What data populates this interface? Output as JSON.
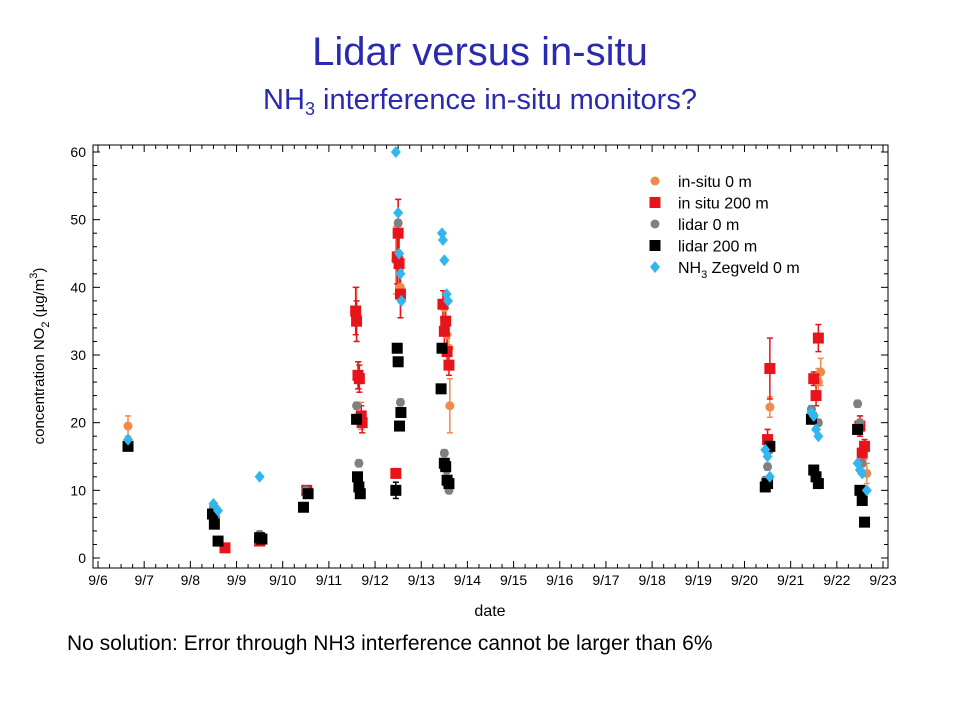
{
  "title": "Lidar versus in-situ",
  "subtitle_pre": "NH",
  "subtitle_sub": "3",
  "subtitle_post": " interference in-situ monitors?",
  "note": "No solution: Error through NH3 interference cannot be larger than 6%",
  "chart_data": {
    "type": "scatter",
    "xlabel": "date",
    "ylabel_pre": "concentration NO",
    "ylabel_sub": "2",
    "ylabel_unit": " (µg/m",
    "ylabel_sup": "3",
    "ylabel_close": ")",
    "x_ticks": [
      "9/6",
      "9/7",
      "9/8",
      "9/9",
      "9/10",
      "9/11",
      "9/12",
      "9/13",
      "9/14",
      "9/15",
      "9/16",
      "9/17",
      "9/18",
      "9/19",
      "9/20",
      "9/21",
      "9/22",
      "9/23"
    ],
    "y_ticks": [
      "0",
      "10",
      "20",
      "30",
      "40",
      "50",
      "60"
    ],
    "xlim": [
      0,
      17
    ],
    "ylim": [
      -1,
      61
    ],
    "legend_position": "top-right",
    "series": [
      {
        "name": "in-situ 0 m",
        "marker": "circle",
        "color": "#f08a4b",
        "points": [
          [
            0.65,
            19.5
          ],
          [
            3.5,
            2.5
          ],
          [
            4.5,
            10
          ],
          [
            5.6,
            36
          ],
          [
            5.65,
            27
          ],
          [
            5.7,
            21
          ],
          [
            6.45,
            44
          ],
          [
            6.5,
            48
          ],
          [
            6.55,
            40
          ],
          [
            7.5,
            37
          ],
          [
            7.55,
            33
          ],
          [
            7.6,
            31
          ],
          [
            7.62,
            22.5
          ],
          [
            14.5,
            17.5
          ],
          [
            14.55,
            22.3
          ],
          [
            15.6,
            26
          ],
          [
            15.65,
            27.5
          ],
          [
            16.5,
            19.5
          ],
          [
            16.6,
            16
          ],
          [
            16.65,
            12.5
          ]
        ],
        "errors": [
          1.5,
          0.5,
          0.5,
          4,
          2,
          2,
          5,
          5,
          4.5,
          2,
          2,
          2,
          4,
          1.5,
          1.5,
          2,
          2,
          1.5,
          1.5,
          1.5
        ]
      },
      {
        "name": "in situ 200 m",
        "marker": "square",
        "color": "#e8141b",
        "points": [
          [
            2.75,
            1.5
          ],
          [
            3.5,
            2.5
          ],
          [
            4.52,
            10
          ],
          [
            5.58,
            36.5
          ],
          [
            5.6,
            35
          ],
          [
            5.63,
            27
          ],
          [
            5.66,
            26.5
          ],
          [
            5.7,
            21
          ],
          [
            5.72,
            20
          ],
          [
            6.45,
            12.5
          ],
          [
            6.48,
            44.5
          ],
          [
            6.5,
            48
          ],
          [
            6.52,
            43.5
          ],
          [
            6.55,
            39
          ],
          [
            7.47,
            37.5
          ],
          [
            7.5,
            33.5
          ],
          [
            7.53,
            35
          ],
          [
            7.56,
            30.5
          ],
          [
            7.6,
            28.5
          ],
          [
            14.5,
            17.5
          ],
          [
            14.55,
            28
          ],
          [
            15.5,
            26.5
          ],
          [
            15.55,
            24
          ],
          [
            15.6,
            32.5
          ],
          [
            16.5,
            19.5
          ],
          [
            16.55,
            15.5
          ],
          [
            16.6,
            16.5
          ]
        ],
        "errors": [
          0.3,
          0.3,
          0.5,
          3.5,
          3,
          2,
          2,
          1.5,
          1.5,
          0.5,
          4,
          5,
          4,
          3.5,
          2,
          2,
          2,
          2,
          1.5,
          1.5,
          4.5,
          1,
          1.5,
          2,
          1.5,
          1,
          1
        ]
      },
      {
        "name": "lidar 0 m",
        "marker": "circle",
        "color": "#808080",
        "points": [
          [
            0.65,
            17
          ],
          [
            2.5,
            7.5
          ],
          [
            2.55,
            6
          ],
          [
            3.5,
            3.5
          ],
          [
            4.5,
            10
          ],
          [
            5.6,
            22.5
          ],
          [
            5.65,
            14
          ],
          [
            6.5,
            49.5
          ],
          [
            6.55,
            23
          ],
          [
            7.5,
            15.5
          ],
          [
            7.55,
            13
          ],
          [
            7.6,
            10
          ],
          [
            14.45,
            11.5
          ],
          [
            14.5,
            13.5
          ],
          [
            14.55,
            16
          ],
          [
            15.45,
            22
          ],
          [
            15.5,
            21
          ],
          [
            15.6,
            20
          ],
          [
            16.45,
            22.8
          ],
          [
            16.5,
            20
          ],
          [
            16.55,
            14
          ]
        ],
        "errors": [
          0.5,
          0.5,
          0.5,
          0.5,
          0.5,
          0.5,
          0.5,
          0.5,
          0.5,
          0.5,
          0.5,
          0.5,
          0.5,
          0.5,
          0.5,
          0.5,
          0.5,
          0.5,
          0.5,
          0.5,
          0.5
        ]
      },
      {
        "name": "lidar 200 m",
        "marker": "square",
        "color": "#000000",
        "points": [
          [
            0.65,
            16.5
          ],
          [
            2.48,
            6.5
          ],
          [
            2.52,
            5
          ],
          [
            2.6,
            2.5
          ],
          [
            3.5,
            3
          ],
          [
            3.55,
            2.8
          ],
          [
            4.45,
            7.5
          ],
          [
            4.55,
            9.5
          ],
          [
            5.6,
            20.5
          ],
          [
            5.62,
            12
          ],
          [
            5.65,
            10.5
          ],
          [
            5.68,
            9.5
          ],
          [
            6.45,
            10
          ],
          [
            6.48,
            31
          ],
          [
            6.5,
            29
          ],
          [
            6.53,
            19.5
          ],
          [
            6.56,
            21.5
          ],
          [
            7.43,
            25
          ],
          [
            7.45,
            31
          ],
          [
            7.5,
            14
          ],
          [
            7.53,
            13.5
          ],
          [
            7.56,
            11.5
          ],
          [
            7.6,
            11
          ],
          [
            14.45,
            10.5
          ],
          [
            14.5,
            11
          ],
          [
            14.55,
            16.5
          ],
          [
            15.45,
            20.5
          ],
          [
            15.5,
            13
          ],
          [
            15.55,
            12
          ],
          [
            15.6,
            11
          ],
          [
            16.45,
            19
          ],
          [
            16.5,
            10
          ],
          [
            16.55,
            8.5
          ],
          [
            16.6,
            5.3
          ]
        ],
        "errors": [
          0.4,
          0.4,
          0.4,
          0.4,
          0.4,
          0.4,
          0.4,
          0.4,
          0.4,
          0.4,
          0.4,
          0.4,
          1.2,
          0.4,
          0.4,
          0.4,
          0.4,
          0.4,
          0.4,
          0.4,
          0.4,
          0.4,
          0.4,
          0.4,
          0.4,
          0.4,
          0.4,
          0.4,
          0.4,
          0.4,
          0.4,
          0.4,
          0.4,
          0.4
        ]
      },
      {
        "name_pre": "NH",
        "name_sub": "3",
        "name_post": " Zegveld 0 m",
        "marker": "diamond",
        "color": "#33b5ee",
        "points": [
          [
            0.65,
            17.5
          ],
          [
            2.5,
            8
          ],
          [
            2.6,
            7
          ],
          [
            3.5,
            12
          ],
          [
            6.45,
            60
          ],
          [
            6.5,
            51
          ],
          [
            6.52,
            45
          ],
          [
            6.55,
            42
          ],
          [
            6.57,
            38
          ],
          [
            7.45,
            48
          ],
          [
            7.47,
            47
          ],
          [
            7.5,
            44
          ],
          [
            7.55,
            39
          ],
          [
            7.58,
            38
          ],
          [
            14.45,
            16
          ],
          [
            14.5,
            15
          ],
          [
            14.55,
            12
          ],
          [
            15.45,
            21.5
          ],
          [
            15.5,
            21
          ],
          [
            15.55,
            19
          ],
          [
            15.6,
            18
          ],
          [
            16.45,
            14
          ],
          [
            16.5,
            13
          ],
          [
            16.55,
            12.5
          ],
          [
            16.65,
            10
          ]
        ]
      }
    ]
  }
}
